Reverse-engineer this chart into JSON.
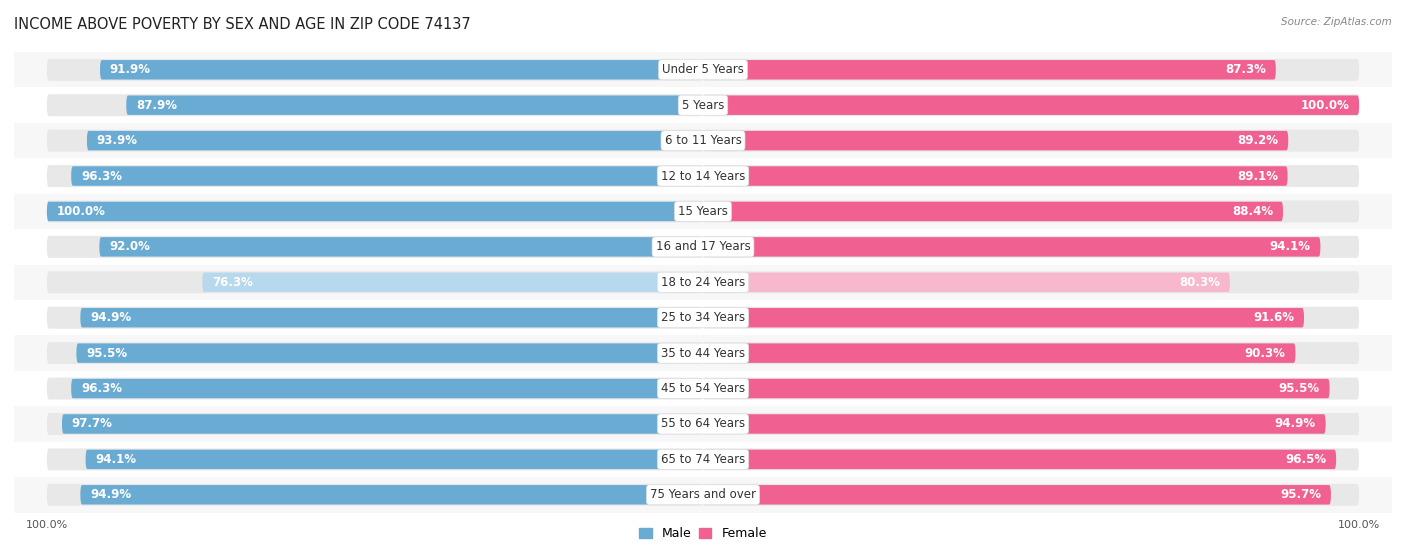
{
  "title": "INCOME ABOVE POVERTY BY SEX AND AGE IN ZIP CODE 74137",
  "source": "Source: ZipAtlas.com",
  "categories": [
    "Under 5 Years",
    "5 Years",
    "6 to 11 Years",
    "12 to 14 Years",
    "15 Years",
    "16 and 17 Years",
    "18 to 24 Years",
    "25 to 34 Years",
    "35 to 44 Years",
    "45 to 54 Years",
    "55 to 64 Years",
    "65 to 74 Years",
    "75 Years and over"
  ],
  "male_values": [
    91.9,
    87.9,
    93.9,
    96.3,
    100.0,
    92.0,
    76.3,
    94.9,
    95.5,
    96.3,
    97.7,
    94.1,
    94.9
  ],
  "female_values": [
    87.3,
    100.0,
    89.2,
    89.1,
    88.4,
    94.1,
    80.3,
    91.6,
    90.3,
    95.5,
    94.9,
    96.5,
    95.7
  ],
  "male_color_dark": "#6aabd4",
  "male_color_light": "#b8d8ee",
  "female_color_dark": "#f06090",
  "female_color_light": "#f7b8ce",
  "male_label": "Male",
  "female_label": "Female",
  "track_color": "#e8e8e8",
  "row_bg_light": "#f7f7f7",
  "row_bg_white": "#ffffff",
  "title_fontsize": 10.5,
  "label_fontsize": 8.5,
  "value_fontsize": 8.5,
  "axis_fontsize": 8
}
